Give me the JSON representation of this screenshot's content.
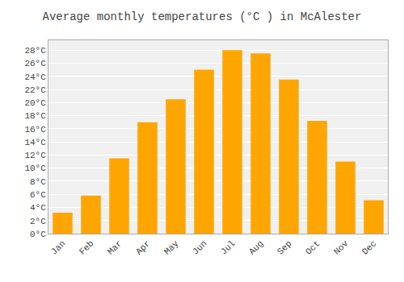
{
  "chart_data": {
    "type": "bar",
    "title": "Average monthly temperatures (°C ) in McAlester",
    "categories": [
      "Jan",
      "Feb",
      "Mar",
      "Apr",
      "May",
      "Jun",
      "Jul",
      "Aug",
      "Sep",
      "Oct",
      "Nov",
      "Dec"
    ],
    "values": [
      3.2,
      5.8,
      11.5,
      17.0,
      20.5,
      25.0,
      28.0,
      27.5,
      23.5,
      17.2,
      11.0,
      5.1
    ],
    "color": "#FFA500",
    "ylim": [
      0,
      29.5
    ],
    "yticks": [
      {
        "value": 0,
        "label": "0°C"
      },
      {
        "value": 2,
        "label": "2°C"
      },
      {
        "value": 4,
        "label": "4°C"
      },
      {
        "value": 6,
        "label": "6°C"
      },
      {
        "value": 8,
        "label": "8°C"
      },
      {
        "value": 10,
        "label": "10°C"
      },
      {
        "value": 12,
        "label": "12°C"
      },
      {
        "value": 14,
        "label": "14°C"
      },
      {
        "value": 16,
        "label": "16°C"
      },
      {
        "value": 18,
        "label": "18°C"
      },
      {
        "value": 20,
        "label": "20°C"
      },
      {
        "value": 22,
        "label": "22°C"
      },
      {
        "value": 24,
        "label": "24°C"
      },
      {
        "value": 26,
        "label": "26°C"
      },
      {
        "value": 28,
        "label": "28°C"
      }
    ],
    "grid": true
  }
}
